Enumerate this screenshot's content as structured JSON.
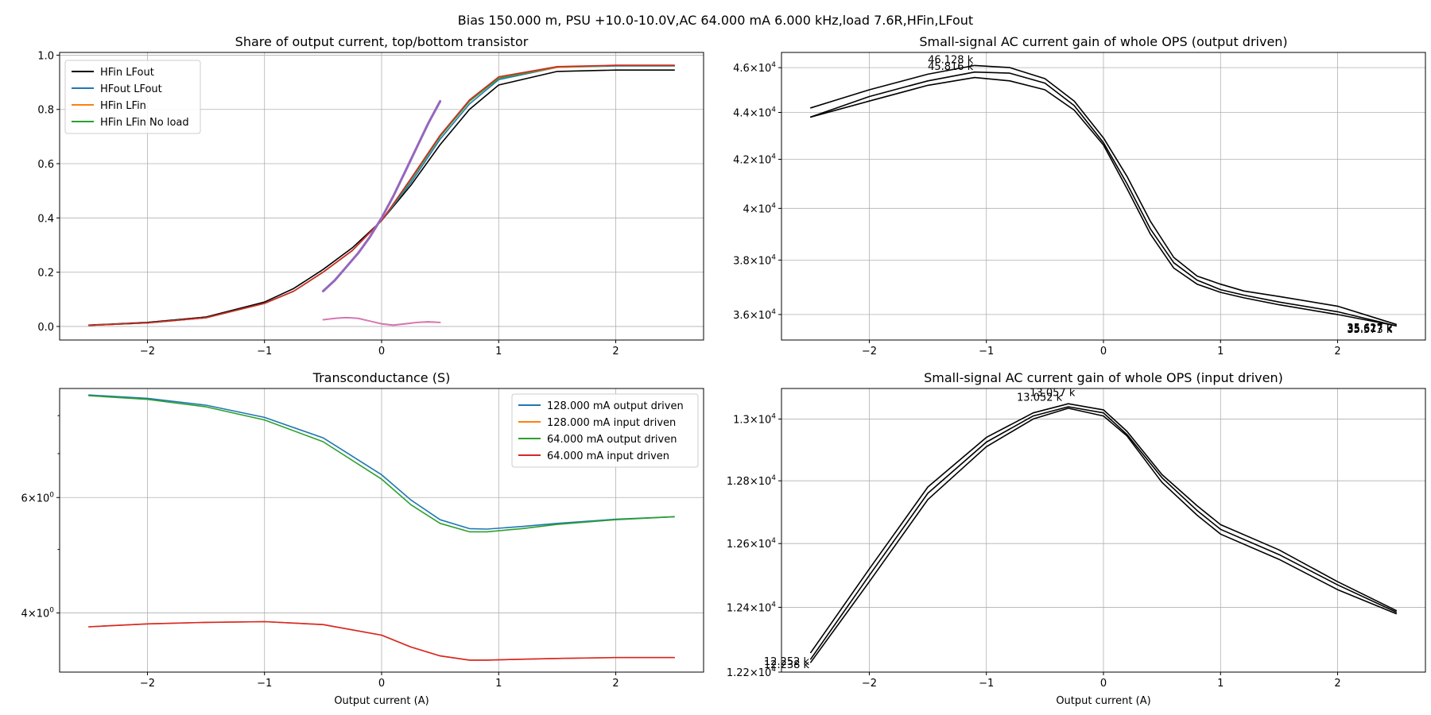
{
  "suptitle": "Bias 150.000 m, PSU +10.0-10.0V,AC 64.000 mA 6.000 kHz,load 7.6R,HFin,LFout",
  "colors": {
    "black": "#000000",
    "blue": "#1f77b4",
    "orange": "#ff7f0e",
    "green": "#2ca02c",
    "red": "#d62728",
    "purple": "#9467bd",
    "brown": "#8c564b"
  },
  "chart_data": [
    {
      "id": "share",
      "type": "line",
      "title": "Share of output current, top/bottom transistor",
      "xlabel": "",
      "ylabel": "",
      "xlim": [
        -2.75,
        2.75
      ],
      "ylim": [
        -0.05,
        1.01
      ],
      "yscale": "linear",
      "grid": true,
      "legend_position": "top-left",
      "xticks": [
        -2,
        -1,
        0,
        1,
        2
      ],
      "xtick_labels": [
        "−2",
        "−1",
        "0",
        "1",
        "2"
      ],
      "yticks": [
        0.0,
        0.2,
        0.4,
        0.6,
        0.8,
        1.0
      ],
      "ytick_labels": [
        "0.0",
        "0.2",
        "0.4",
        "0.6",
        "0.8",
        "1.0"
      ],
      "series": [
        {
          "name": "HFin LFout",
          "color": "#000000",
          "in_legend": true,
          "x": [
            -2.5,
            -2.0,
            -1.5,
            -1.0,
            -0.75,
            -0.5,
            -0.25,
            0.0,
            0.25,
            0.5,
            0.75,
            1.0,
            1.5,
            2.0,
            2.5
          ],
          "y": [
            0.005,
            0.015,
            0.035,
            0.09,
            0.14,
            0.21,
            0.29,
            0.39,
            0.52,
            0.67,
            0.8,
            0.89,
            0.94,
            0.945,
            0.945
          ]
        },
        {
          "name": "HFout LFout",
          "color": "#1f77b4",
          "in_legend": true,
          "x": [
            -2.5,
            -2.0,
            -1.5,
            -1.0,
            -0.75,
            -0.5,
            -0.25,
            0.0,
            0.25,
            0.5,
            0.75,
            1.0,
            1.5,
            2.0,
            2.5
          ],
          "y": [
            0.004,
            0.013,
            0.032,
            0.085,
            0.13,
            0.2,
            0.28,
            0.39,
            0.53,
            0.69,
            0.82,
            0.91,
            0.955,
            0.96,
            0.96
          ]
        },
        {
          "name": "HFin LFin",
          "color": "#ff7f0e",
          "in_legend": true,
          "x": [
            -2.5,
            -2.0,
            -1.5,
            -1.0,
            -0.75,
            -0.5,
            -0.25,
            0.0,
            0.25,
            0.5,
            0.75,
            1.0,
            1.5,
            2.0,
            2.5
          ],
          "y": [
            0.004,
            0.013,
            0.032,
            0.085,
            0.13,
            0.2,
            0.28,
            0.39,
            0.54,
            0.7,
            0.83,
            0.915,
            0.955,
            0.962,
            0.962
          ]
        },
        {
          "name": "HFin LFin No load",
          "color": "#2ca02c",
          "in_legend": true,
          "x": [
            -2.5,
            -2.0,
            -1.5,
            -1.0,
            -0.75,
            -0.5,
            -0.25,
            0.0,
            0.25,
            0.5,
            0.75,
            1.0,
            1.5,
            2.0,
            2.5
          ],
          "y": [
            0.004,
            0.013,
            0.032,
            0.085,
            0.13,
            0.2,
            0.28,
            0.39,
            0.54,
            0.7,
            0.83,
            0.915,
            0.957,
            0.962,
            0.962
          ]
        },
        {
          "name": "",
          "color": "#d62728",
          "in_legend": false,
          "x": [
            -2.5,
            -2.0,
            -1.5,
            -1.0,
            -0.75,
            -0.5,
            -0.25,
            0.0,
            0.25,
            0.5,
            0.75,
            1.0,
            1.5,
            2.0,
            2.5
          ],
          "y": [
            0.004,
            0.013,
            0.032,
            0.085,
            0.13,
            0.2,
            0.28,
            0.39,
            0.545,
            0.705,
            0.835,
            0.92,
            0.958,
            0.963,
            0.963
          ]
        },
        {
          "name": "",
          "color": "#9467bd",
          "in_legend": false,
          "x": [
            -0.5,
            -0.4,
            -0.3,
            -0.2,
            -0.1,
            0.0,
            0.1,
            0.2,
            0.3,
            0.4,
            0.5
          ],
          "y": [
            0.13,
            0.17,
            0.22,
            0.27,
            0.33,
            0.4,
            0.48,
            0.57,
            0.66,
            0.75,
            0.83
          ]
        },
        {
          "name": "",
          "color": "#8c564b",
          "in_legend": false,
          "x": [
            -0.5,
            -0.4,
            -0.3,
            -0.2,
            -0.1,
            0.0,
            0.1,
            0.2,
            0.3,
            0.4,
            0.5
          ],
          "y": [
            0.025,
            0.03,
            0.033,
            0.03,
            0.02,
            0.01,
            0.005,
            0.01,
            0.015,
            0.017,
            0.015
          ]
        },
        {
          "name": "",
          "color": "#e377c2",
          "in_legend": false,
          "x": [
            -0.5,
            -0.4,
            -0.3,
            -0.2,
            -0.1,
            0.0,
            0.1,
            0.2,
            0.3,
            0.4,
            0.5
          ],
          "y": [
            0.024,
            0.029,
            0.032,
            0.029,
            0.019,
            0.009,
            0.004,
            0.009,
            0.014,
            0.016,
            0.014
          ]
        }
      ],
      "annotations": []
    },
    {
      "id": "gain_out",
      "type": "line",
      "title": "Small-signal AC current gain of whole OPS (output driven)",
      "xlabel": "",
      "ylabel": "",
      "xlim": [
        -2.75,
        2.75
      ],
      "ylim": [
        35100,
        46700
      ],
      "yscale": "log",
      "grid": true,
      "legend_position": "none",
      "xticks": [
        -2,
        -1,
        0,
        1,
        2
      ],
      "xtick_labels": [
        "−2",
        "−1",
        "0",
        "1",
        "2"
      ],
      "yticks": [
        36000,
        38000,
        40000,
        42000,
        44000,
        46000
      ],
      "ytick_labels": [
        {
          "mantissa": "3.6",
          "base": "10",
          "exp": "4"
        },
        {
          "mantissa": "3.8",
          "base": "10",
          "exp": "4"
        },
        {
          "mantissa": "4",
          "base": "10",
          "exp": "4"
        },
        {
          "mantissa": "4.2",
          "base": "10",
          "exp": "4"
        },
        {
          "mantissa": "4.4",
          "base": "10",
          "exp": "4"
        },
        {
          "mantissa": "4.6",
          "base": "10",
          "exp": "4"
        }
      ],
      "series": [
        {
          "name": "",
          "color": "#000000",
          "x": [
            -2.5,
            -2.0,
            -1.5,
            -1.1,
            -0.8,
            -0.5,
            -0.25,
            0.0,
            0.2,
            0.4,
            0.6,
            0.8,
            1.0,
            1.2,
            1.5,
            2.0,
            2.5
          ],
          "y": [
            44200,
            45000,
            45700,
            46100,
            46000,
            45500,
            44500,
            42900,
            41300,
            39500,
            38100,
            37400,
            37100,
            36850,
            36650,
            36300,
            35650
          ]
        },
        {
          "name": "",
          "color": "#000000",
          "x": [
            -2.5,
            -2.0,
            -1.5,
            -1.1,
            -0.8,
            -0.5,
            -0.25,
            0.0,
            0.2,
            0.4,
            0.6,
            0.8,
            1.0,
            1.2,
            1.5,
            2.0,
            2.5
          ],
          "y": [
            43800,
            44700,
            45400,
            45800,
            45750,
            45300,
            44300,
            42700,
            41000,
            39200,
            37900,
            37250,
            36900,
            36700,
            36450,
            36100,
            35600
          ]
        },
        {
          "name": "",
          "color": "#000000",
          "x": [
            -2.5,
            -2.0,
            -1.5,
            -1.1,
            -0.8,
            -0.5,
            -0.25,
            0.0,
            0.2,
            0.4,
            0.6,
            0.8,
            1.0,
            1.2,
            1.5,
            2.0,
            2.5
          ],
          "y": [
            43800,
            44500,
            45200,
            45550,
            45400,
            45000,
            44100,
            42600,
            40800,
            39000,
            37700,
            37100,
            36800,
            36600,
            36350,
            36000,
            35600
          ]
        }
      ],
      "annotations": [
        {
          "text": "46.128 k",
          "x": -1.5,
          "y": 46200
        },
        {
          "text": "45.816 k",
          "x": -1.5,
          "y": 45900
        },
        {
          "text": "35.627 k",
          "x": 2.08,
          "y": 35400
        },
        {
          "text": "35.573 k",
          "x": 2.08,
          "y": 35350
        },
        {
          "text": "35.617 k",
          "x": 2.08,
          "y": 35380
        }
      ]
    },
    {
      "id": "transconductance",
      "type": "line",
      "title": "Transconductance (S)",
      "xlabel": "Output current (A)",
      "ylabel": "",
      "xlim": [
        -2.75,
        2.75
      ],
      "ylim": [
        3.25,
        8.8
      ],
      "yscale": "log",
      "grid": true,
      "legend_position": "top-right",
      "xticks": [
        -2,
        -1,
        0,
        1,
        2
      ],
      "xtick_labels": [
        "−2",
        "−1",
        "0",
        "1",
        "2"
      ],
      "yticks": [
        4,
        6
      ],
      "ytick_labels": [
        {
          "mantissa": "4",
          "base": "10",
          "exp": "0"
        },
        {
          "mantissa": "6",
          "base": "10",
          "exp": "0"
        }
      ],
      "minor_yticks": [
        5,
        7,
        8
      ],
      "series": [
        {
          "name": "128.000 mA output driven",
          "color": "#1f77b4",
          "in_legend": true,
          "x": [
            -2.5,
            -2.0,
            -1.5,
            -1.0,
            -0.5,
            0.0,
            0.25,
            0.5,
            0.75,
            0.9,
            1.2,
            1.5,
            2.0,
            2.5
          ],
          "y": [
            8.6,
            8.5,
            8.3,
            7.95,
            7.4,
            6.5,
            5.95,
            5.55,
            5.38,
            5.37,
            5.42,
            5.48,
            5.56,
            5.61
          ]
        },
        {
          "name": "128.000 mA input driven",
          "color": "#ff7f0e",
          "in_legend": true,
          "x": [
            -2.5,
            -2.0,
            -1.5,
            -1.0,
            -0.5,
            0.0,
            0.25,
            0.5,
            0.75,
            0.9,
            1.2,
            1.5,
            2.0,
            2.5
          ],
          "y": [
            3.81,
            3.85,
            3.87,
            3.88,
            3.84,
            3.7,
            3.55,
            3.44,
            3.39,
            3.39,
            3.4,
            3.41,
            3.42,
            3.42
          ]
        },
        {
          "name": "64.000 mA output driven",
          "color": "#2ca02c",
          "in_legend": true,
          "x": [
            -2.5,
            -2.0,
            -1.5,
            -1.0,
            -0.5,
            0.0,
            0.25,
            0.5,
            0.75,
            0.9,
            1.2,
            1.5,
            2.0,
            2.5
          ],
          "y": [
            8.58,
            8.47,
            8.25,
            7.88,
            7.3,
            6.4,
            5.85,
            5.48,
            5.32,
            5.32,
            5.38,
            5.46,
            5.55,
            5.61
          ]
        },
        {
          "name": "64.000 mA input driven",
          "color": "#d62728",
          "in_legend": true,
          "x": [
            -2.5,
            -2.0,
            -1.5,
            -1.0,
            -0.5,
            0.0,
            0.25,
            0.5,
            0.75,
            0.9,
            1.2,
            1.5,
            2.0,
            2.5
          ],
          "y": [
            3.81,
            3.85,
            3.87,
            3.88,
            3.84,
            3.7,
            3.55,
            3.44,
            3.39,
            3.39,
            3.4,
            3.41,
            3.42,
            3.42
          ]
        }
      ],
      "annotations": []
    },
    {
      "id": "gain_in",
      "type": "line",
      "title": "Small-signal AC current gain of whole OPS (input driven)",
      "xlabel": "Output current (A)",
      "ylabel": "",
      "xlim": [
        -2.75,
        2.75
      ],
      "ylim": [
        12200,
        13100
      ],
      "yscale": "log",
      "grid": true,
      "legend_position": "none",
      "xticks": [
        -2,
        -1,
        0,
        1,
        2
      ],
      "xtick_labels": [
        "−2",
        "−1",
        "0",
        "1",
        "2"
      ],
      "yticks": [
        12200,
        12400,
        12600,
        12800,
        13000
      ],
      "ytick_labels": [
        {
          "mantissa": "1.22",
          "base": "10",
          "exp": "4"
        },
        {
          "mantissa": "1.24",
          "base": "10",
          "exp": "4"
        },
        {
          "mantissa": "1.26",
          "base": "10",
          "exp": "4"
        },
        {
          "mantissa": "1.28",
          "base": "10",
          "exp": "4"
        },
        {
          "mantissa": "1.3",
          "base": "10",
          "exp": "4"
        }
      ],
      "series": [
        {
          "name": "",
          "color": "#000000",
          "x": [
            -2.5,
            -2.0,
            -1.5,
            -1.0,
            -0.6,
            -0.3,
            0.0,
            0.2,
            0.5,
            0.8,
            1.0,
            1.5,
            2.0,
            2.5
          ],
          "y": [
            12260,
            12520,
            12780,
            12940,
            13020,
            13050,
            13030,
            12960,
            12820,
            12720,
            12660,
            12580,
            12480,
            12390
          ]
        },
        {
          "name": "",
          "color": "#000000",
          "x": [
            -2.5,
            -2.0,
            -1.5,
            -1.0,
            -0.6,
            -0.3,
            0.0,
            0.2,
            0.5,
            0.8,
            1.0,
            1.5,
            2.0,
            2.5
          ],
          "y": [
            12240,
            12500,
            12760,
            12925,
            13010,
            13040,
            13020,
            12950,
            12810,
            12705,
            12645,
            12565,
            12470,
            12385
          ]
        },
        {
          "name": "",
          "color": "#000000",
          "x": [
            -2.5,
            -2.0,
            -1.5,
            -1.0,
            -0.6,
            -0.3,
            0.0,
            0.2,
            0.5,
            0.8,
            1.0,
            1.5,
            2.0,
            2.5
          ],
          "y": [
            12230,
            12480,
            12740,
            12910,
            13000,
            13035,
            13010,
            12945,
            12795,
            12690,
            12630,
            12550,
            12455,
            12380
          ]
        }
      ],
      "annotations": [
        {
          "text": "13.057 k",
          "x": -0.63,
          "y": 13075
        },
        {
          "text": "13.052 k",
          "x": -0.74,
          "y": 13060
        },
        {
          "text": "12.252 k",
          "x": -2.9,
          "y": 12222
        },
        {
          "text": "12.238 k",
          "x": -2.9,
          "y": 12212
        }
      ]
    }
  ]
}
